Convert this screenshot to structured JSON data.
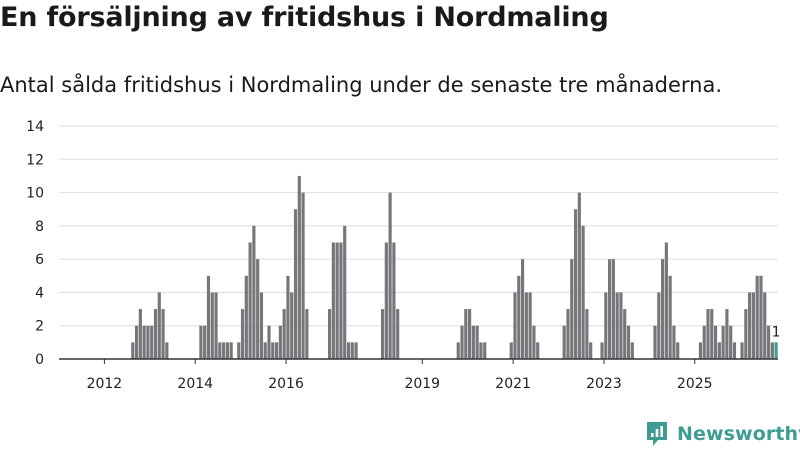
{
  "header": {
    "title": "En försäljning av fritidshus i Nordmaling",
    "subtitle": "Antal sålda fritidshus i Nordmaling under de senaste tre månaderna."
  },
  "brand": {
    "name": "Newsworthy",
    "color": "#3f9c93"
  },
  "colors": {
    "bar": "#77767b",
    "highlight": "#3f9c93",
    "grid": "#dddddd",
    "axis": "#333333"
  },
  "chart_data": {
    "type": "bar",
    "title": "",
    "xlabel": "",
    "ylabel": "",
    "ylim": [
      0,
      14
    ],
    "yticks": [
      0,
      2,
      4,
      6,
      8,
      10,
      12,
      14
    ],
    "xticks": [
      "2012",
      "2014",
      "2016",
      "2019",
      "2021",
      "2023",
      "2025"
    ],
    "grid": true,
    "start_year": 2011,
    "annotation": {
      "label": "1",
      "target": "last"
    },
    "values": [
      0,
      0,
      0,
      0,
      0,
      0,
      0,
      0,
      0,
      0,
      0,
      0,
      0,
      0,
      0,
      0,
      0,
      0,
      0,
      1,
      2,
      3,
      2,
      2,
      2,
      3,
      4,
      3,
      1,
      0,
      0,
      0,
      0,
      0,
      0,
      0,
      0,
      2,
      2,
      5,
      4,
      4,
      1,
      1,
      1,
      1,
      0,
      1,
      3,
      5,
      7,
      8,
      6,
      4,
      1,
      2,
      1,
      1,
      2,
      3,
      5,
      4,
      9,
      11,
      10,
      3,
      0,
      0,
      0,
      0,
      0,
      3,
      7,
      7,
      7,
      8,
      1,
      1,
      1,
      0,
      0,
      0,
      0,
      0,
      0,
      3,
      7,
      10,
      7,
      3,
      0,
      0,
      0,
      0,
      0,
      0,
      0,
      0,
      0,
      0,
      0,
      0,
      0,
      0,
      0,
      1,
      2,
      3,
      3,
      2,
      2,
      1,
      1,
      0,
      0,
      0,
      0,
      0,
      0,
      1,
      4,
      5,
      6,
      4,
      4,
      2,
      1,
      0,
      0,
      0,
      0,
      0,
      0,
      2,
      3,
      6,
      9,
      10,
      8,
      3,
      1,
      0,
      0,
      1,
      4,
      6,
      6,
      4,
      4,
      3,
      2,
      1,
      0,
      0,
      0,
      0,
      0,
      2,
      4,
      6,
      7,
      5,
      2,
      1,
      0,
      0,
      0,
      0,
      0,
      1,
      2,
      3,
      3,
      2,
      1,
      2,
      3,
      2,
      1,
      0,
      1,
      3,
      4,
      4,
      5,
      5,
      4,
      2,
      1,
      1
    ]
  }
}
